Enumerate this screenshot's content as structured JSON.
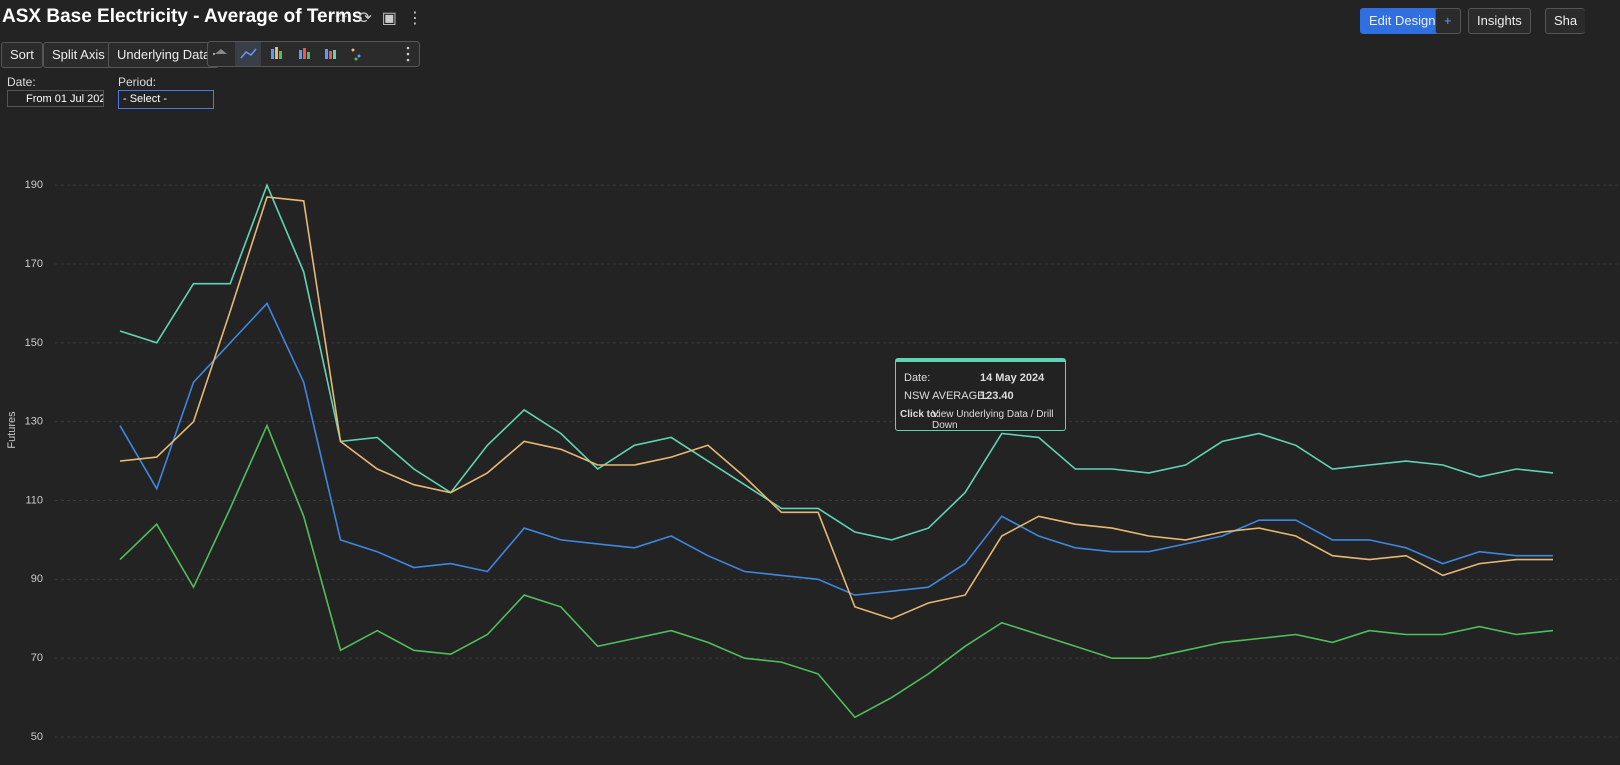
{
  "header": {
    "title": "ASX Base Electricity - Average of Terms",
    "buttons": [
      "Edit Design",
      "+",
      "Insights",
      "Sha"
    ]
  },
  "toolbar": {
    "buttons": [
      "Sort",
      "Split Axis",
      "Underlying Data"
    ]
  },
  "filters": {
    "date_label": "Date:",
    "date_value": "From 01 Jul 202",
    "period_label": "Period:",
    "period_value": "- Select -"
  },
  "tooltip": {
    "date_label": "Date:",
    "date": "14 May 2024",
    "series_label": "NSW AVERAGE:",
    "value": "123.40",
    "click_label": "Click to:",
    "click_text": "View Underlying Data / Drill Down"
  },
  "chart_data": {
    "type": "line",
    "y_label": "Futures",
    "ylim": [
      50,
      204
    ],
    "yticks": [
      50,
      70,
      90,
      110,
      130,
      150,
      170,
      190
    ],
    "grid": true,
    "series": [
      {
        "name": "NSW AVERAGE",
        "color": "#5fd4b4",
        "values": [
          153,
          150,
          165,
          165,
          190,
          168,
          125,
          126,
          118,
          112,
          124,
          133,
          127,
          118,
          124,
          126,
          120,
          114,
          108,
          108,
          102,
          100,
          103,
          112,
          127,
          126,
          118,
          118,
          117,
          119,
          125,
          127,
          124,
          118,
          119,
          120,
          119,
          116,
          118,
          117
        ]
      },
      {
        "color": "#3f86e0",
        "values": [
          129,
          113,
          140,
          150,
          160,
          140,
          100,
          97,
          93,
          94,
          92,
          103,
          100,
          99,
          98,
          101,
          96,
          92,
          91,
          90,
          86,
          87,
          88,
          94,
          106,
          101,
          98,
          97,
          97,
          99,
          101,
          105,
          105,
          100,
          100,
          98,
          94,
          97,
          96,
          96
        ]
      },
      {
        "color": "#e5b874",
        "values": [
          120,
          121,
          130,
          158,
          187,
          186,
          125,
          118,
          114,
          112,
          117,
          125,
          123,
          119,
          119,
          121,
          124,
          116,
          107,
          107,
          83,
          80,
          84,
          86,
          101,
          106,
          104,
          103,
          101,
          100,
          102,
          103,
          101,
          96,
          95,
          96,
          91,
          94,
          95,
          95
        ]
      },
      {
        "color": "#4fbf5a",
        "values": [
          95,
          104,
          88,
          108,
          129,
          106,
          72,
          77,
          72,
          71,
          76,
          86,
          83,
          73,
          75,
          77,
          74,
          70,
          69,
          66,
          55,
          60,
          66,
          73,
          79,
          76,
          73,
          70,
          70,
          72,
          74,
          75,
          76,
          74,
          77,
          76,
          76,
          78,
          76,
          77
        ]
      }
    ]
  }
}
